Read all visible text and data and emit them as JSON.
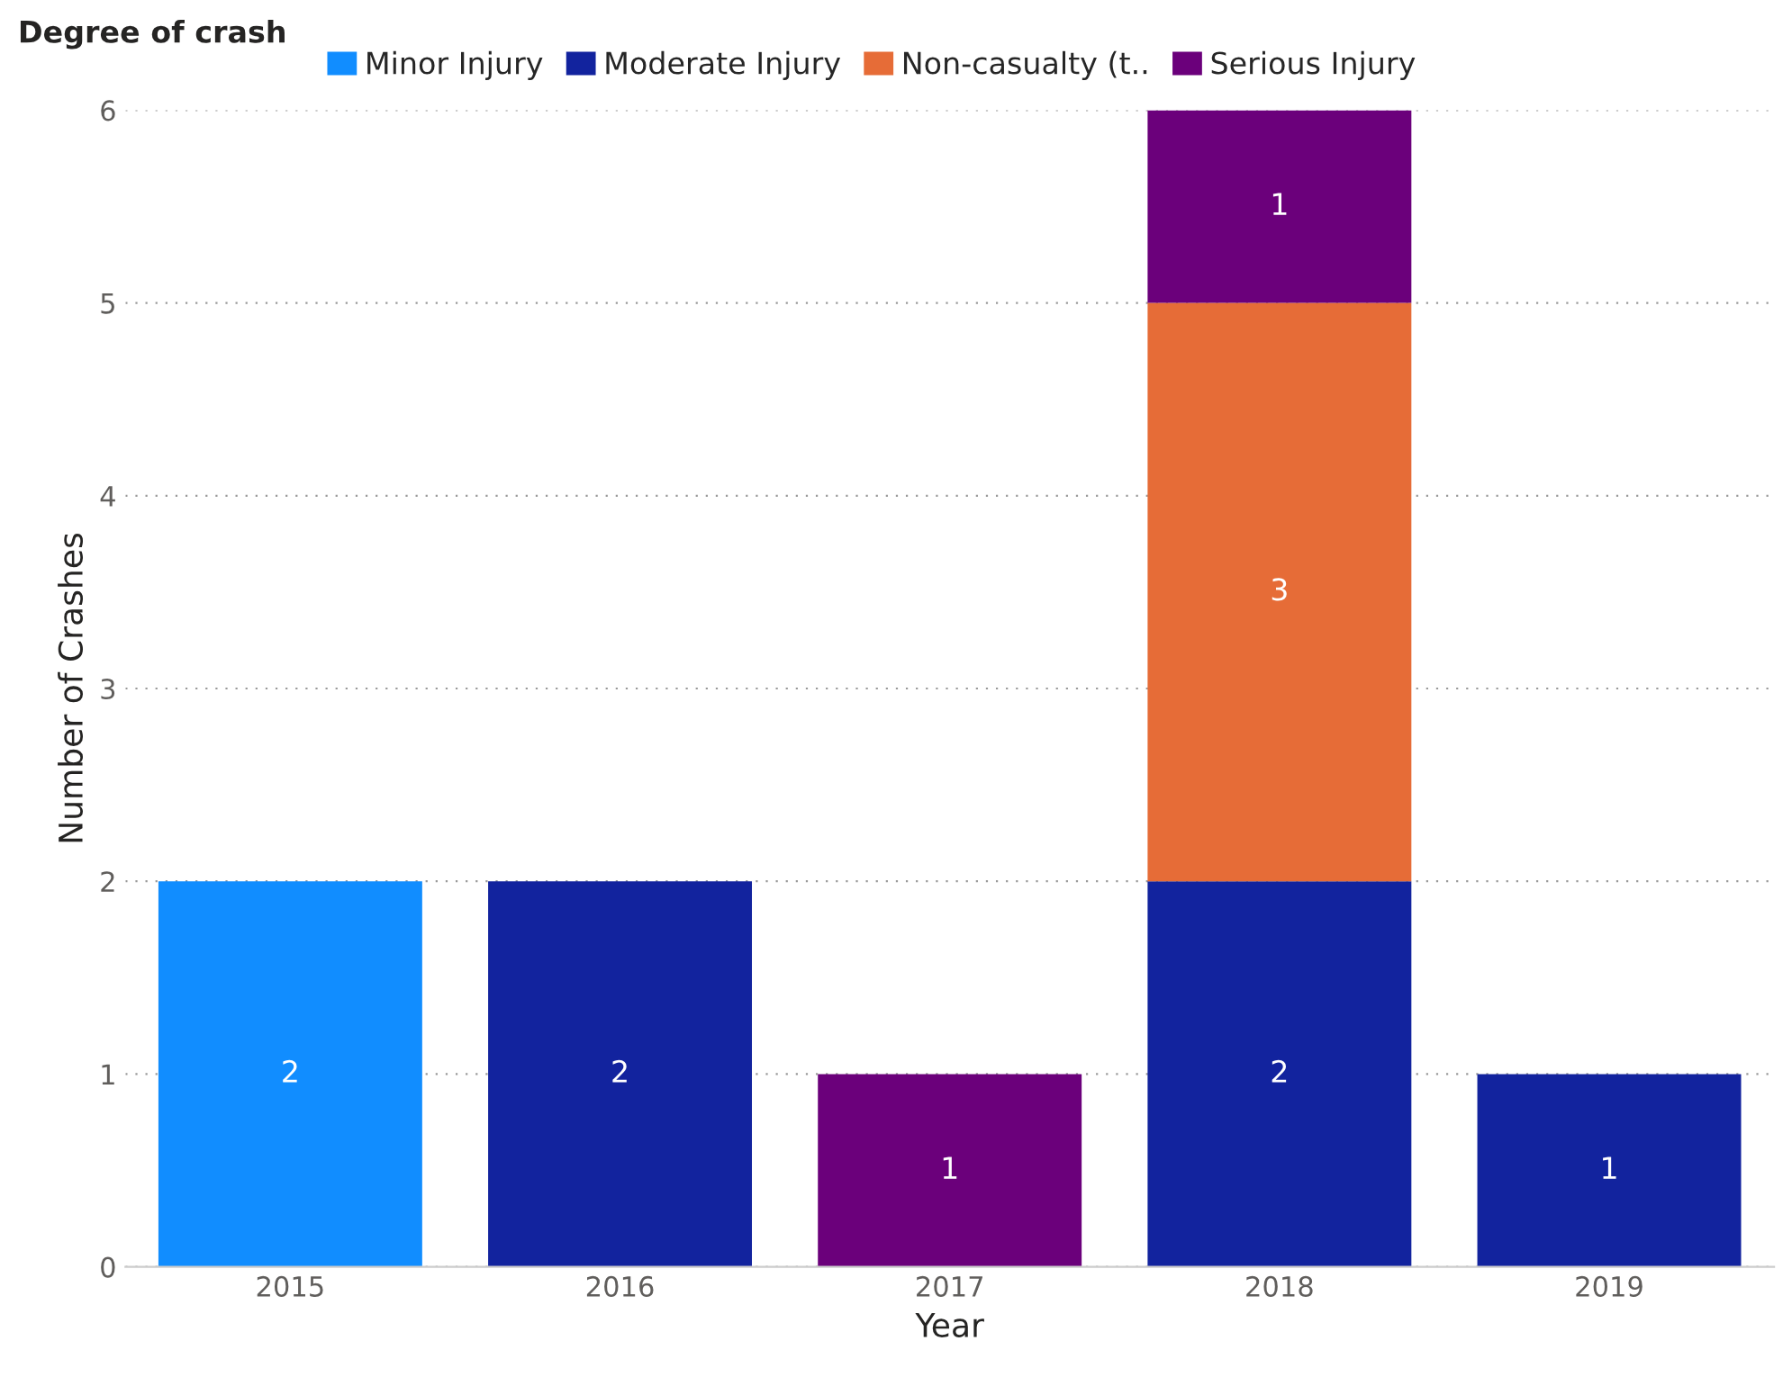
{
  "chart_data": {
    "type": "bar",
    "stacked": true,
    "xlabel": "Year",
    "ylabel": "Number of Crashes",
    "legend_title": "Degree of crash",
    "legend": "top left",
    "categories": [
      "2015",
      "2016",
      "2017",
      "2018",
      "2019"
    ],
    "series": [
      {
        "name": "Minor Injury",
        "color": "#118dff",
        "values": [
          2,
          null,
          null,
          null,
          null
        ]
      },
      {
        "name": "Moderate Injury",
        "color": "#12239e",
        "values": [
          null,
          2,
          null,
          2,
          1
        ]
      },
      {
        "name": "Non-casualty (t..",
        "color": "#e66c37",
        "values": [
          null,
          null,
          null,
          3,
          null
        ]
      },
      {
        "name": "Serious Injury",
        "color": "#6b007b",
        "values": [
          null,
          null,
          1,
          1,
          null
        ]
      }
    ],
    "ylim": [
      0,
      6
    ],
    "yticks": [
      0,
      1,
      2,
      3,
      4,
      5,
      6
    ],
    "grid": "y",
    "data_labels": true
  }
}
